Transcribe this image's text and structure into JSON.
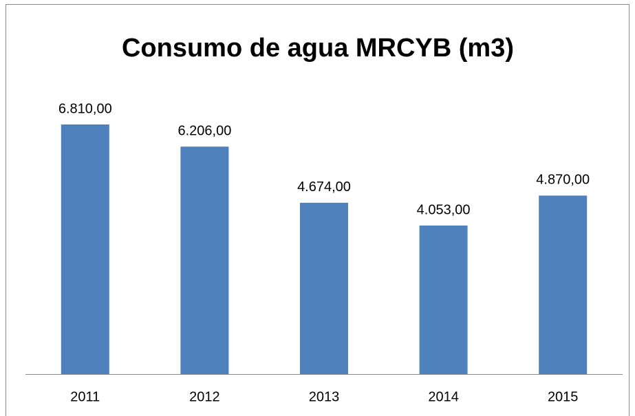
{
  "chart_data": {
    "type": "bar",
    "title": "Consumo de agua MRCYB (m3)",
    "categories": [
      "2011",
      "2012",
      "2013",
      "2014",
      "2015"
    ],
    "values": [
      6810,
      6206,
      4674,
      4053,
      4870
    ],
    "value_labels": [
      "6.810,00",
      "6.206,00",
      "4.674,00",
      "4.053,00",
      "4.870,00"
    ],
    "color": "#4f81bd"
  }
}
